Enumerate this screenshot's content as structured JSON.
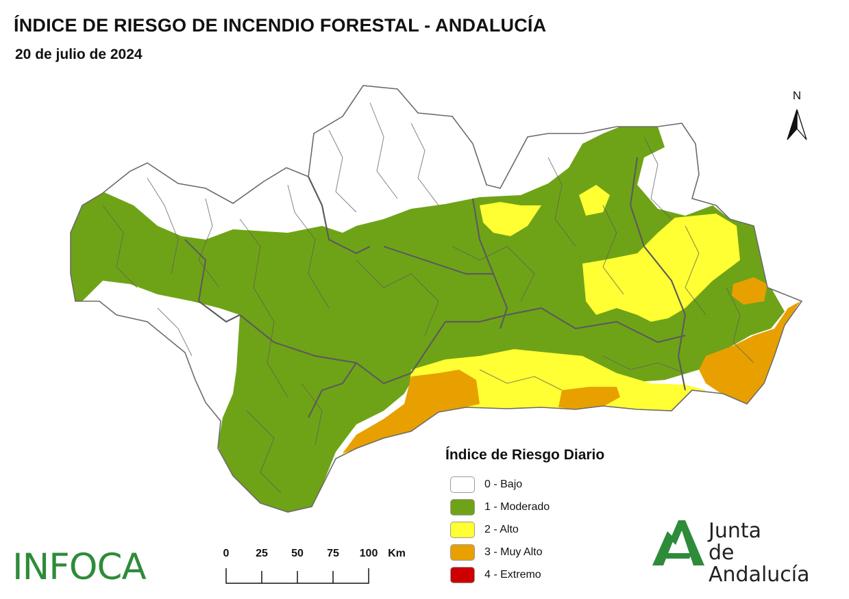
{
  "title": "ÍNDICE DE RIESGO DE INCENDIO FORESTAL - ANDALUCÍA",
  "subtitle": "20 de julio de 2024",
  "north_label": "N",
  "legend": {
    "title": "Índice de Riesgo Diario",
    "items": [
      {
        "label": "0 - Bajo",
        "color": "#ffffff"
      },
      {
        "label": "1 - Moderado",
        "color": "#6fa317"
      },
      {
        "label": "2 - Alto",
        "color": "#ffff33"
      },
      {
        "label": "3 - Muy Alto",
        "color": "#e8a000"
      },
      {
        "label": "4 - Extremo",
        "color": "#cc0000"
      }
    ]
  },
  "scale_bar": {
    "ticks": [
      "0",
      "25",
      "50",
      "75",
      "100"
    ],
    "unit": "Km"
  },
  "branding": {
    "infoca": "INFOCA",
    "junta_line1": "Junta",
    "junta_line2": "de Andalucía",
    "junta_color": "#2e8b3a"
  },
  "colors": {
    "boundary": "#5c5c5c",
    "outline": "#6a6a6a"
  }
}
